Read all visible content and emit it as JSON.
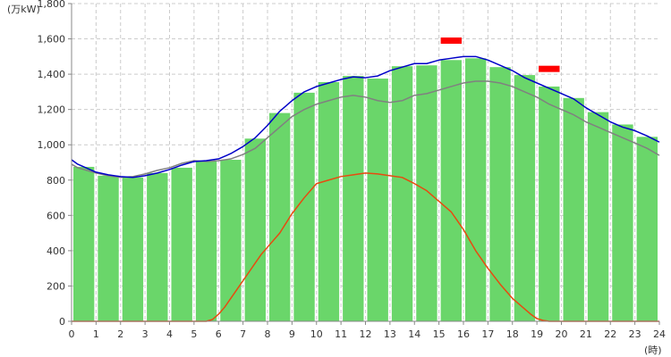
{
  "chart_data": {
    "type": "bar",
    "y_unit_label": "(万kW)",
    "x_unit_label": "(時)",
    "xlim": [
      0,
      24
    ],
    "ylim": [
      0,
      1800
    ],
    "y_ticks": [
      0,
      200,
      400,
      600,
      800,
      "1,000",
      "1,200",
      "1,400",
      "1,600",
      "1,800"
    ],
    "y_tick_values": [
      0,
      200,
      400,
      600,
      800,
      1000,
      1200,
      1400,
      1600,
      1800
    ],
    "x_ticks": [
      "0",
      "1",
      "2",
      "3",
      "4",
      "5",
      "6",
      "7",
      "8",
      "9",
      "10",
      "11",
      "12",
      "13",
      "14",
      "15",
      "16",
      "17",
      "18",
      "19",
      "20",
      "21",
      "22",
      "23",
      "24"
    ],
    "grid": true,
    "colors": {
      "bars": "#6ad66a",
      "demand_line": "#0000c8",
      "gray_line": "#808080",
      "solar_line": "#e84a10",
      "markers": "#ff0000",
      "grid": "#cccccc",
      "axis": "#888888"
    },
    "series": [
      {
        "kind": "bar",
        "values": [
          875,
          825,
          815,
          840,
          870,
          905,
          915,
          1035,
          1180,
          1295,
          1355,
          1390,
          1375,
          1445,
          1450,
          1480,
          1490,
          1440,
          1395,
          1330,
          1265,
          1185,
          1115,
          1045
        ]
      },
      {
        "kind": "line",
        "color_key": "demand_line",
        "x": [
          0,
          0.25,
          0.5,
          0.75,
          1,
          1.5,
          2,
          2.5,
          3,
          3.5,
          4,
          4.5,
          5,
          5.5,
          6,
          6.5,
          7,
          7.5,
          8,
          8.5,
          9,
          9.5,
          10,
          10.5,
          11,
          11.5,
          12,
          12.5,
          13,
          13.5,
          14,
          14.5,
          15,
          15.5,
          16,
          16.5,
          17,
          17.5,
          18,
          18.5,
          19,
          19.5,
          20,
          20.5,
          21,
          21.5,
          22,
          22.5,
          23,
          23.5,
          24
        ],
        "y": [
          915,
          890,
          875,
          860,
          845,
          830,
          820,
          815,
          825,
          840,
          860,
          885,
          905,
          910,
          920,
          950,
          990,
          1040,
          1110,
          1190,
          1250,
          1300,
          1330,
          1350,
          1370,
          1385,
          1380,
          1390,
          1420,
          1440,
          1460,
          1460,
          1480,
          1490,
          1500,
          1500,
          1480,
          1450,
          1420,
          1380,
          1350,
          1320,
          1290,
          1260,
          1210,
          1170,
          1130,
          1100,
          1080,
          1050,
          1015
        ]
      },
      {
        "kind": "line",
        "color_key": "gray_line",
        "x": [
          0,
          0.25,
          0.5,
          0.75,
          1,
          1.5,
          2,
          2.5,
          3,
          3.5,
          4,
          4.5,
          5,
          5.5,
          6,
          6.5,
          7,
          7.5,
          8,
          8.5,
          9,
          9.5,
          10,
          10.5,
          11,
          11.5,
          12,
          12.5,
          13,
          13.5,
          14,
          14.5,
          15,
          15.5,
          16,
          16.5,
          17,
          17.5,
          18,
          18.5,
          19,
          19.5,
          20,
          20.5,
          21,
          21.5,
          22,
          22.5,
          23,
          23.5,
          24
        ],
        "y": [
          890,
          870,
          860,
          850,
          840,
          825,
          815,
          820,
          835,
          855,
          870,
          895,
          910,
          905,
          910,
          920,
          945,
          980,
          1040,
          1100,
          1160,
          1200,
          1230,
          1250,
          1270,
          1280,
          1270,
          1250,
          1240,
          1250,
          1280,
          1290,
          1310,
          1330,
          1350,
          1360,
          1360,
          1350,
          1330,
          1300,
          1270,
          1230,
          1200,
          1170,
          1130,
          1100,
          1070,
          1040,
          1010,
          980,
          940
        ]
      },
      {
        "kind": "line",
        "color_key": "solar_line",
        "x": [
          0,
          5.5,
          5.75,
          6,
          6.25,
          6.5,
          6.75,
          7,
          7.25,
          7.5,
          7.75,
          8,
          8.5,
          9,
          9.5,
          10,
          10.5,
          11,
          11.5,
          12,
          12.5,
          13,
          13.5,
          14,
          14.5,
          15,
          15.5,
          16,
          16.5,
          17,
          17.5,
          18,
          18.5,
          18.75,
          19,
          19.25,
          19.5,
          24
        ],
        "y": [
          0,
          0,
          10,
          40,
          80,
          130,
          180,
          230,
          280,
          330,
          380,
          420,
          500,
          610,
          700,
          780,
          800,
          820,
          830,
          840,
          835,
          825,
          815,
          780,
          740,
          680,
          620,
          520,
          400,
          300,
          210,
          130,
          70,
          40,
          15,
          5,
          0,
          0
        ]
      }
    ],
    "markers": [
      {
        "x_start": 15.0,
        "x_end": 16.0,
        "y": 1590
      },
      {
        "x_start": 19.0,
        "x_end": 20.0,
        "y": 1430
      }
    ]
  }
}
